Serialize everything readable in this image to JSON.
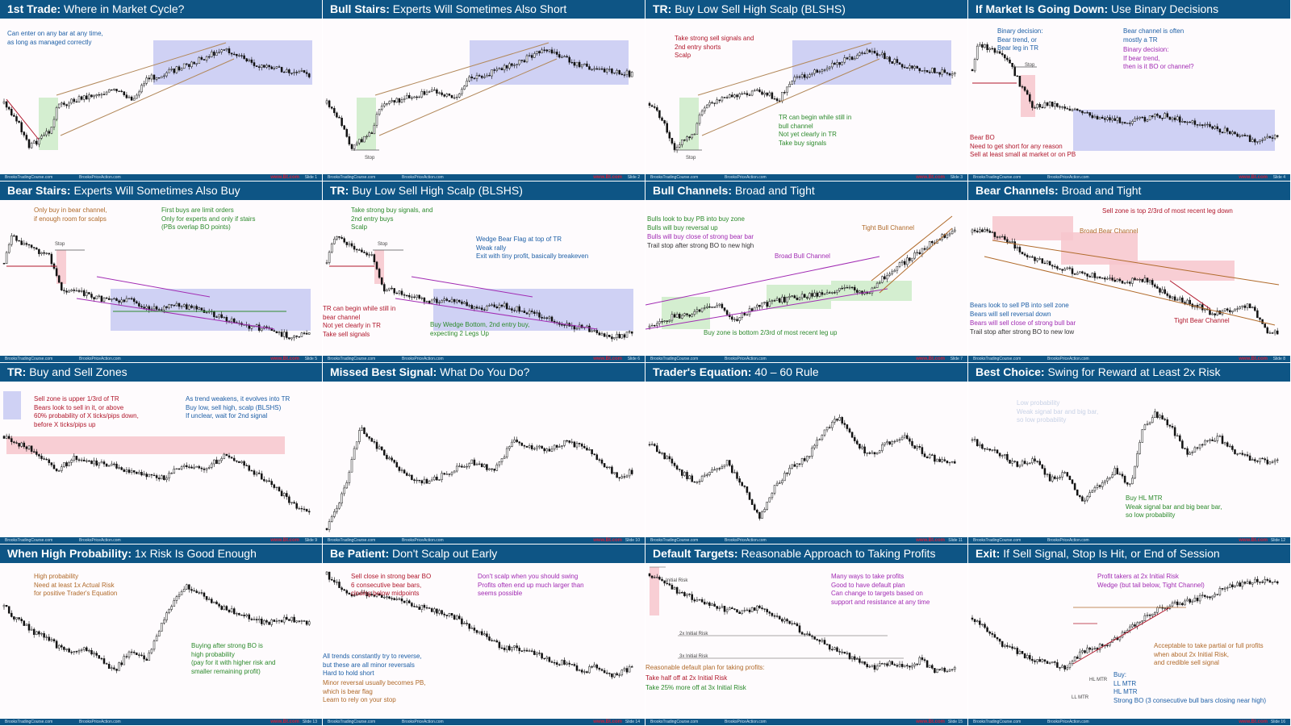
{
  "colors": {
    "title_bar": "#0e5585",
    "zone_blue": "#c7c9f2",
    "zone_green": "#cdebc8",
    "zone_red": "#f7c6cc",
    "bull": "#2c8a2c",
    "bear": "#b0172b"
  },
  "footer": {
    "left": "BrooksTradingCourse.com",
    "mid": "BrooksPriceAction.com",
    "right": "www.Bt.com"
  },
  "slides": [
    {
      "title_bold": "1st Trade:",
      "title_rest": "Where in Market Cycle?",
      "num": "Slide 1",
      "notes": [
        {
          "text": "Can enter on any bar at any time,\nas long as managed correctly",
          "color": "blue"
        }
      ],
      "labels": []
    },
    {
      "title_bold": "Bull Stairs:",
      "title_rest": "Experts Will Sometimes Also Short",
      "num": "Slide 2",
      "notes": [],
      "labels": [
        "Stop"
      ]
    },
    {
      "title_bold": "TR:",
      "title_rest": "Buy Low Sell High Scalp (BLSHS)",
      "num": "Slide 3",
      "notes": [
        {
          "text": "Take strong sell signals and\n2nd entry shorts\nScalp",
          "color": "red"
        },
        {
          "text": "TR can begin while still in\nbull channel\nNot yet clearly in TR\nTake buy signals",
          "color": "green"
        }
      ],
      "labels": [
        "Stop"
      ]
    },
    {
      "title_bold": "If Market Is Going Down:",
      "title_rest": "Use Binary Decisions",
      "num": "Slide 4",
      "notes": [
        {
          "text": "Binary decision:\nBear trend, or\nBear leg in TR",
          "color": "blue"
        },
        {
          "text": "Bear channel is often\nmostly a TR",
          "color": "blue"
        },
        {
          "text": "Binary decision:\nIf bear trend,\nthen is it BO or channel?",
          "color": "purple"
        },
        {
          "text": "Bear BO\nNeed to get short for any reason\nSell at least small at market or on PB",
          "color": "red"
        }
      ],
      "labels": [
        "Stop"
      ]
    },
    {
      "title_bold": "Bear Stairs:",
      "title_rest": "Experts Will Sometimes Also Buy",
      "num": "Slide 5",
      "notes": [
        {
          "text": "Only buy in bear channel,\nif enough room for scalps",
          "color": "brown"
        },
        {
          "text": "First buys are limit orders\nOnly for experts and only if stairs\n(PBs overlap BO points)",
          "color": "green"
        }
      ],
      "labels": [
        "Stop"
      ]
    },
    {
      "title_bold": "TR:",
      "title_rest": "Buy Low Sell High Scalp (BLSHS)",
      "num": "Slide 6",
      "notes": [
        {
          "text": "Take strong buy signals, and\n2nd entry buys\nScalp",
          "color": "green"
        },
        {
          "text": "Wedge Bear Flag at top of TR\nWeak rally\nExit with tiny profit, basically breakeven",
          "color": "blue"
        },
        {
          "text": "TR can begin while still in\nbear channel\nNot yet clearly in TR\nTake sell signals",
          "color": "red"
        },
        {
          "text": "Buy Wedge Bottom, 2nd entry buy,\nexpecting 2 Legs Up",
          "color": "green"
        }
      ],
      "labels": [
        "Stop"
      ]
    },
    {
      "title_bold": "Bull Channels:",
      "title_rest": "Broad and Tight",
      "num": "Slide 7",
      "notes": [
        {
          "text": "Bulls look to buy PB into buy zone\nBulls will buy reversal up",
          "color": "green"
        },
        {
          "text": "Bulls will buy close of strong bear bar",
          "color": "purple"
        },
        {
          "text": "Trail stop after strong BO to new high",
          "color": "dark"
        },
        {
          "text": "Tight Bull Channel",
          "color": "brown"
        },
        {
          "text": "Broad Bull Channel",
          "color": "purple"
        },
        {
          "text": "Buy zone is bottom 2/3rd of most recent leg up",
          "color": "green"
        }
      ],
      "labels": []
    },
    {
      "title_bold": "Bear Channels:",
      "title_rest": "Broad and Tight",
      "num": "Slide 8",
      "notes": [
        {
          "text": "Sell zone is top 2/3rd of most recent leg down",
          "color": "red"
        },
        {
          "text": "Broad Bear Channel",
          "color": "brown"
        },
        {
          "text": "Bears look to sell PB into sell zone\nBears will sell reversal down",
          "color": "blue"
        },
        {
          "text": "Bears will sell close of strong bull bar",
          "color": "purple"
        },
        {
          "text": "Trail stop after strong BO to new low",
          "color": "dark"
        },
        {
          "text": "Tight Bear Channel",
          "color": "red"
        }
      ],
      "labels": []
    },
    {
      "title_bold": "TR:",
      "title_rest": "Buy and Sell Zones",
      "num": "Slide 9",
      "notes": [
        {
          "text": "Sell zone is upper 1/3rd of TR\nBears look to sell in it, or above\n60% probability of X ticks/pips down,\nbefore X ticks/pips up",
          "color": "red"
        },
        {
          "text": "As trend weakens, it evolves into TR\nBuy low, sell high, scalp (BLSHS)\nIf unclear, wait for 2nd signal",
          "color": "blue"
        }
      ],
      "labels": []
    },
    {
      "title_bold": "Missed Best Signal:",
      "title_rest": "What Do You Do?",
      "num": "Slide 10",
      "notes": [],
      "labels": []
    },
    {
      "title_bold": "Trader's Equation:",
      "title_rest": "40 – 60 Rule",
      "num": "Slide 11",
      "notes": [],
      "labels": []
    },
    {
      "title_bold": "Best Choice:",
      "title_rest": "Swing for Reward at Least 2x Risk",
      "num": "Slide 12",
      "notes": [
        {
          "text": "Low probability\nWeak signal bar and big bar,\nso low probability",
          "color": "faint"
        },
        {
          "text": "Buy HL MTR\nWeak signal bar and big bear bar,\nso low probability",
          "color": "green"
        }
      ],
      "labels": []
    },
    {
      "title_bold": "When High Probability:",
      "title_rest": "1x Risk Is Good Enough",
      "num": "Slide 13",
      "notes": [
        {
          "text": "High probability\nNeed at least 1x Actual Risk\nfor positive Trader's Equation",
          "color": "brown"
        },
        {
          "text": "Buying after strong BO is\nhigh probability\n(pay for it with higher risk and\nsmaller remaining profit)",
          "color": "green"
        }
      ],
      "labels": []
    },
    {
      "title_bold": "Be Patient:",
      "title_rest": "Don't Scalp out Early",
      "num": "Slide 14",
      "notes": [
        {
          "text": "Sell close in strong bear BO\n6 consecutive bear bars,\nclosing below midpoints",
          "color": "red"
        },
        {
          "text": "Don't scalp when you should swing\nProfits often end up much larger than\nseems possible",
          "color": "purple"
        },
        {
          "text": "All trends constantly try to reverse,\nbut these are all minor reversals\nHard to hold short",
          "color": "blue"
        },
        {
          "text": "Minor reversal usually becomes PB,\nwhich is bear flag\nLearn to rely on your stop",
          "color": "brown"
        }
      ],
      "labels": []
    },
    {
      "title_bold": "Default Targets:",
      "title_rest": "Reasonable Approach to Taking Profits",
      "num": "Slide 15",
      "notes": [
        {
          "text": "Many ways to take profits\nGood to have default plan\nCan change to targets based on\nsupport and resistance at any time",
          "color": "purple"
        },
        {
          "text": "Reasonable default plan for taking profits:",
          "color": "brown"
        },
        {
          "text": "Take half off at 2x Initial Risk",
          "color": "red"
        },
        {
          "text": "Take 25% more off at 3x Initial Risk",
          "color": "green"
        }
      ],
      "labels": [
        "Initial Risk",
        "2x Initial Risk",
        "3x Initial Risk"
      ]
    },
    {
      "title_bold": "Exit:",
      "title_rest": "If Sell Signal, Stop Is Hit, or End of Session",
      "num": "Slide 16",
      "notes": [
        {
          "text": "Profit takers at 2x Initial Risk\nWedge (but tail below, Tight Channel)",
          "color": "purple"
        },
        {
          "text": "Acceptable to take partial or full profits\nwhen about 2x Initial Risk,\nand credible sell signal",
          "color": "brown"
        },
        {
          "text": "Buy:\nLL MTR\nHL MTR\nStrong BO (3 consecutive bull bars closing near high)",
          "color": "blue"
        }
      ],
      "labels": [
        "HL MTR",
        "LL MTR"
      ]
    }
  ]
}
